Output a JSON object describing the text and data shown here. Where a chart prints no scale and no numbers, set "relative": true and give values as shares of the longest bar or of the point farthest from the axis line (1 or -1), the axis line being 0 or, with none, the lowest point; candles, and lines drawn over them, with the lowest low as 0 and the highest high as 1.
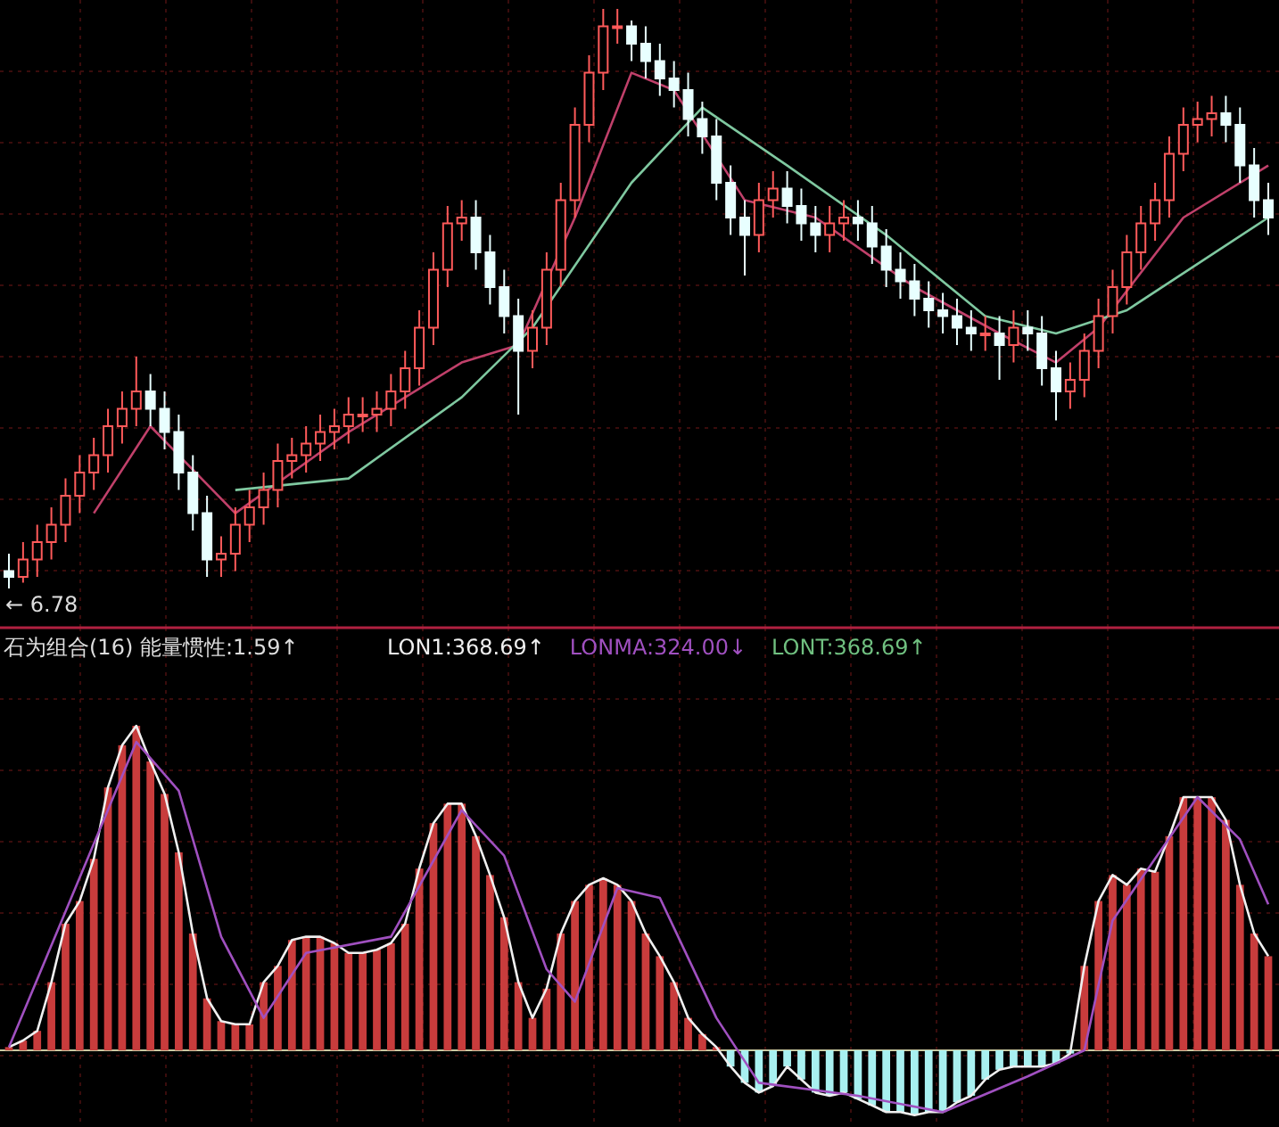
{
  "chart_data": [
    {
      "type": "candlestick",
      "relative": true,
      "grid": true,
      "annotations": [
        "← 6.78"
      ],
      "categories": [
        null,
        null,
        null,
        null,
        null,
        null,
        null,
        null,
        null,
        null,
        null,
        null,
        null,
        null,
        null,
        null,
        null,
        null,
        null,
        null,
        null,
        null,
        null,
        null,
        null,
        null,
        null,
        null,
        null,
        null,
        null,
        null,
        null,
        null,
        null,
        null,
        null,
        null,
        null,
        null,
        null,
        null,
        null,
        null,
        null,
        null,
        null,
        null,
        null,
        null,
        null,
        null,
        null,
        null,
        null,
        null,
        null,
        null,
        null,
        null,
        null,
        null,
        null,
        null,
        null,
        null,
        null,
        null,
        null,
        null,
        null,
        null,
        null,
        null,
        null,
        null,
        null,
        null,
        null,
        null,
        null,
        null,
        null,
        null,
        null,
        null,
        null,
        null,
        null,
        null
      ],
      "ohlc": [
        [
          0.03,
          0.06,
          0.0,
          0.02
        ],
        [
          0.02,
          0.08,
          0.01,
          0.05
        ],
        [
          0.05,
          0.11,
          0.02,
          0.08
        ],
        [
          0.08,
          0.14,
          0.05,
          0.11
        ],
        [
          0.11,
          0.19,
          0.08,
          0.16
        ],
        [
          0.16,
          0.23,
          0.13,
          0.2
        ],
        [
          0.2,
          0.26,
          0.17,
          0.23
        ],
        [
          0.23,
          0.31,
          0.2,
          0.28
        ],
        [
          0.28,
          0.34,
          0.25,
          0.31
        ],
        [
          0.31,
          0.4,
          0.28,
          0.34
        ],
        [
          0.34,
          0.37,
          0.28,
          0.31
        ],
        [
          0.31,
          0.34,
          0.24,
          0.27
        ],
        [
          0.27,
          0.3,
          0.17,
          0.2
        ],
        [
          0.2,
          0.23,
          0.1,
          0.13
        ],
        [
          0.13,
          0.16,
          0.02,
          0.05
        ],
        [
          0.05,
          0.09,
          0.02,
          0.06
        ],
        [
          0.06,
          0.14,
          0.03,
          0.11
        ],
        [
          0.11,
          0.17,
          0.08,
          0.14
        ],
        [
          0.14,
          0.2,
          0.11,
          0.17
        ],
        [
          0.17,
          0.25,
          0.14,
          0.22
        ],
        [
          0.22,
          0.26,
          0.19,
          0.23
        ],
        [
          0.23,
          0.28,
          0.2,
          0.25
        ],
        [
          0.25,
          0.3,
          0.22,
          0.27
        ],
        [
          0.27,
          0.31,
          0.24,
          0.28
        ],
        [
          0.28,
          0.33,
          0.25,
          0.3
        ],
        [
          0.3,
          0.33,
          0.27,
          0.3
        ],
        [
          0.3,
          0.34,
          0.27,
          0.31
        ],
        [
          0.31,
          0.37,
          0.28,
          0.34
        ],
        [
          0.34,
          0.41,
          0.31,
          0.38
        ],
        [
          0.38,
          0.48,
          0.35,
          0.45
        ],
        [
          0.45,
          0.58,
          0.42,
          0.55
        ],
        [
          0.55,
          0.66,
          0.52,
          0.63
        ],
        [
          0.63,
          0.67,
          0.6,
          0.64
        ],
        [
          0.64,
          0.67,
          0.55,
          0.58
        ],
        [
          0.58,
          0.61,
          0.49,
          0.52
        ],
        [
          0.52,
          0.55,
          0.44,
          0.47
        ],
        [
          0.47,
          0.5,
          0.3,
          0.41
        ],
        [
          0.41,
          0.48,
          0.38,
          0.45
        ],
        [
          0.45,
          0.58,
          0.42,
          0.55
        ],
        [
          0.55,
          0.7,
          0.52,
          0.67
        ],
        [
          0.67,
          0.83,
          0.64,
          0.8
        ],
        [
          0.8,
          0.92,
          0.77,
          0.89
        ],
        [
          0.89,
          1.0,
          0.86,
          0.97
        ],
        [
          0.97,
          1.0,
          0.94,
          0.97
        ],
        [
          0.97,
          0.98,
          0.91,
          0.94
        ],
        [
          0.94,
          0.97,
          0.88,
          0.91
        ],
        [
          0.91,
          0.94,
          0.85,
          0.88
        ],
        [
          0.88,
          0.91,
          0.83,
          0.86
        ],
        [
          0.86,
          0.89,
          0.78,
          0.81
        ],
        [
          0.81,
          0.84,
          0.75,
          0.78
        ],
        [
          0.78,
          0.81,
          0.67,
          0.7
        ],
        [
          0.7,
          0.73,
          0.61,
          0.64
        ],
        [
          0.64,
          0.67,
          0.54,
          0.61
        ],
        [
          0.61,
          0.7,
          0.58,
          0.67
        ],
        [
          0.67,
          0.72,
          0.64,
          0.69
        ],
        [
          0.69,
          0.72,
          0.63,
          0.66
        ],
        [
          0.66,
          0.69,
          0.6,
          0.63
        ],
        [
          0.63,
          0.66,
          0.58,
          0.61
        ],
        [
          0.61,
          0.66,
          0.58,
          0.63
        ],
        [
          0.63,
          0.67,
          0.6,
          0.64
        ],
        [
          0.64,
          0.67,
          0.6,
          0.63
        ],
        [
          0.63,
          0.66,
          0.56,
          0.59
        ],
        [
          0.59,
          0.62,
          0.52,
          0.55
        ],
        [
          0.55,
          0.58,
          0.5,
          0.53
        ],
        [
          0.53,
          0.56,
          0.47,
          0.5
        ],
        [
          0.5,
          0.53,
          0.45,
          0.48
        ],
        [
          0.48,
          0.51,
          0.44,
          0.47
        ],
        [
          0.47,
          0.5,
          0.42,
          0.45
        ],
        [
          0.45,
          0.48,
          0.41,
          0.44
        ],
        [
          0.44,
          0.47,
          0.41,
          0.44
        ],
        [
          0.44,
          0.47,
          0.36,
          0.42
        ],
        [
          0.42,
          0.48,
          0.39,
          0.45
        ],
        [
          0.45,
          0.48,
          0.41,
          0.44
        ],
        [
          0.44,
          0.47,
          0.35,
          0.38
        ],
        [
          0.38,
          0.41,
          0.29,
          0.34
        ],
        [
          0.34,
          0.39,
          0.31,
          0.36
        ],
        [
          0.36,
          0.44,
          0.33,
          0.41
        ],
        [
          0.41,
          0.5,
          0.38,
          0.47
        ],
        [
          0.47,
          0.55,
          0.44,
          0.52
        ],
        [
          0.52,
          0.61,
          0.49,
          0.58
        ],
        [
          0.58,
          0.66,
          0.55,
          0.63
        ],
        [
          0.63,
          0.7,
          0.6,
          0.67
        ],
        [
          0.67,
          0.78,
          0.64,
          0.75
        ],
        [
          0.75,
          0.83,
          0.72,
          0.8
        ],
        [
          0.8,
          0.84,
          0.77,
          0.81
        ],
        [
          0.81,
          0.85,
          0.78,
          0.82
        ],
        [
          0.82,
          0.85,
          0.77,
          0.8
        ],
        [
          0.8,
          0.83,
          0.7,
          0.73
        ],
        [
          0.73,
          0.76,
          0.64,
          0.67
        ],
        [
          0.67,
          0.7,
          0.61,
          0.64
        ]
      ],
      "series": [
        {
          "type": "line",
          "color": "#c0406a",
          "values": [
            null,
            null,
            null,
            null,
            null,
            null,
            0.13,
            null,
            null,
            null,
            0.28,
            null,
            null,
            null,
            null,
            null,
            0.13,
            null,
            null,
            null,
            null,
            null,
            null,
            null,
            0.27,
            null,
            null,
            null,
            null,
            null,
            null,
            null,
            0.39,
            null,
            null,
            null,
            0.42,
            null,
            null,
            null,
            0.64,
            null,
            null,
            null,
            0.89,
            null,
            null,
            0.86,
            null,
            null,
            null,
            null,
            0.67,
            null,
            null,
            null,
            null,
            0.64,
            null,
            null,
            null,
            null,
            null,
            null,
            0.52,
            null,
            null,
            null,
            null,
            null,
            0.44,
            null,
            null,
            null,
            0.39,
            null,
            null,
            0.45,
            null,
            null,
            null,
            null,
            null,
            0.64,
            null,
            null,
            null,
            null,
            null,
            0.73
          ]
        },
        {
          "type": "line",
          "color": "#7fc8a0",
          "values": [
            null,
            null,
            null,
            null,
            null,
            null,
            null,
            null,
            null,
            null,
            null,
            null,
            null,
            null,
            null,
            null,
            0.17,
            null,
            null,
            null,
            null,
            null,
            null,
            null,
            0.19,
            null,
            null,
            null,
            null,
            null,
            null,
            null,
            0.33,
            null,
            null,
            null,
            null,
            0.45,
            null,
            null,
            null,
            null,
            null,
            null,
            0.7,
            null,
            null,
            null,
            null,
            0.83,
            null,
            null,
            null,
            null,
            null,
            0.73,
            null,
            null,
            null,
            null,
            null,
            null,
            0.61,
            null,
            null,
            null,
            null,
            null,
            null,
            0.47,
            null,
            null,
            null,
            null,
            0.44,
            null,
            null,
            null,
            null,
            0.48,
            null,
            null,
            null,
            null,
            null,
            null,
            null,
            null,
            null,
            0.64
          ]
        }
      ]
    },
    {
      "type": "bar",
      "relative": true,
      "grid": true,
      "title": "石为组合(16) 能量惯性:1.59↑",
      "annotations": [
        "LONT:368.69↑"
      ],
      "categories": [
        null,
        null,
        null,
        null,
        null,
        null,
        null,
        null,
        null,
        null,
        null,
        null,
        null,
        null,
        null,
        null,
        null,
        null,
        null,
        null,
        null,
        null,
        null,
        null,
        null,
        null,
        null,
        null,
        null,
        null,
        null,
        null,
        null,
        null,
        null,
        null,
        null,
        null,
        null,
        null,
        null,
        null,
        null,
        null,
        null,
        null,
        null,
        null,
        null,
        null,
        null,
        null,
        null,
        null,
        null,
        null,
        null,
        null,
        null,
        null,
        null,
        null,
        null,
        null,
        null,
        null,
        null,
        null,
        null,
        null,
        null,
        null,
        null,
        null,
        null,
        null,
        null,
        null,
        null,
        null,
        null,
        null,
        null,
        null,
        null,
        null,
        null,
        null,
        null,
        null
      ],
      "series": [
        {
          "values": [
            0.01,
            0.03,
            0.06,
            0.21,
            0.39,
            0.46,
            0.59,
            0.81,
            0.94,
            1.0,
            0.89,
            0.79,
            0.61,
            0.36,
            0.16,
            0.09,
            0.08,
            0.08,
            0.21,
            0.26,
            0.34,
            0.35,
            0.35,
            0.33,
            0.3,
            0.3,
            0.31,
            0.33,
            0.39,
            0.56,
            0.7,
            0.76,
            0.76,
            0.66,
            0.54,
            0.41,
            0.21,
            0.1,
            0.19,
            0.36,
            0.46,
            0.51,
            0.53,
            0.51,
            0.46,
            0.36,
            0.29,
            0.21,
            0.1,
            0.05,
            0.01,
            -0.05,
            -0.1,
            -0.13,
            -0.11,
            -0.05,
            -0.09,
            -0.13,
            -0.14,
            -0.13,
            -0.15,
            -0.17,
            -0.19,
            -0.19,
            -0.2,
            -0.19,
            -0.19,
            -0.16,
            -0.14,
            -0.09,
            -0.06,
            -0.05,
            -0.05,
            -0.05,
            -0.04,
            -0.01,
            0.26,
            0.46,
            0.54,
            0.51,
            0.56,
            0.55,
            0.66,
            0.78,
            0.78,
            0.78,
            0.71,
            0.51,
            0.36,
            0.29
          ],
          "colors": [
            "#c83c3c",
            "#c83c3c",
            "#c83c3c",
            "#c83c3c",
            "#c83c3c",
            "#c83c3c",
            "#c83c3c",
            "#c83c3c",
            "#c83c3c",
            "#c83c3c",
            "#c83c3c",
            "#c83c3c",
            "#c83c3c",
            "#c83c3c",
            "#c83c3c",
            "#c83c3c",
            "#c83c3c",
            "#c83c3c",
            "#c83c3c",
            "#c83c3c",
            "#c83c3c",
            "#c83c3c",
            "#c83c3c",
            "#c83c3c",
            "#c83c3c",
            "#c83c3c",
            "#c83c3c",
            "#c83c3c",
            "#c83c3c",
            "#c83c3c",
            "#c83c3c",
            "#c83c3c",
            "#c83c3c",
            "#c83c3c",
            "#c83c3c",
            "#c83c3c",
            "#c83c3c",
            "#c83c3c",
            "#c83c3c",
            "#c83c3c",
            "#c83c3c",
            "#c83c3c",
            "#c83c3c",
            "#c83c3c",
            "#c83c3c",
            "#c83c3c",
            "#c83c3c",
            "#c83c3c",
            "#c83c3c",
            "#c83c3c",
            "#c83c3c",
            "#a8f0f0",
            "#a8f0f0",
            "#a8f0f0",
            "#a8f0f0",
            "#a8f0f0",
            "#a8f0f0",
            "#a8f0f0",
            "#a8f0f0",
            "#a8f0f0",
            "#a8f0f0",
            "#a8f0f0",
            "#a8f0f0",
            "#a8f0f0",
            "#a8f0f0",
            "#a8f0f0",
            "#a8f0f0",
            "#a8f0f0",
            "#a8f0f0",
            "#a8f0f0",
            "#a8f0f0",
            "#a8f0f0",
            "#a8f0f0",
            "#a8f0f0",
            "#a8f0f0",
            "#a8f0f0",
            "#c83c3c",
            "#c83c3c",
            "#c83c3c",
            "#c83c3c",
            "#c83c3c",
            "#c83c3c",
            "#c83c3c",
            "#c83c3c",
            "#c83c3c",
            "#c83c3c",
            "#c83c3c",
            "#c83c3c",
            "#c83c3c",
            "#c83c3c"
          ]
        },
        {
          "name": "LON1:368.69↑",
          "type": "line",
          "color": "#f0f0f0",
          "values": [
            0.01,
            0.03,
            0.06,
            0.21,
            0.39,
            0.46,
            0.59,
            0.81,
            0.94,
            1.0,
            0.89,
            0.79,
            0.61,
            0.36,
            0.16,
            0.09,
            0.08,
            0.08,
            0.21,
            0.26,
            0.34,
            0.35,
            0.35,
            0.33,
            0.3,
            0.3,
            0.31,
            0.33,
            0.39,
            0.56,
            0.7,
            0.76,
            0.76,
            0.66,
            0.54,
            0.41,
            0.21,
            0.1,
            0.19,
            0.36,
            0.46,
            0.51,
            0.53,
            0.51,
            0.46,
            0.36,
            0.29,
            0.21,
            0.1,
            0.05,
            0.01,
            -0.05,
            -0.1,
            -0.13,
            -0.11,
            -0.05,
            -0.09,
            -0.13,
            -0.14,
            -0.13,
            -0.15,
            -0.17,
            -0.19,
            -0.19,
            -0.2,
            -0.19,
            -0.19,
            -0.16,
            -0.14,
            -0.09,
            -0.06,
            -0.05,
            -0.05,
            -0.05,
            -0.04,
            -0.01,
            0.26,
            0.46,
            0.54,
            0.51,
            0.56,
            0.55,
            0.66,
            0.78,
            0.78,
            0.78,
            0.71,
            0.51,
            0.36,
            0.29
          ]
        },
        {
          "name": "LONMA:324.00↓",
          "type": "line",
          "color": "#a050c0",
          "values": [
            0.01,
            null,
            null,
            null,
            null,
            null,
            null,
            null,
            null,
            0.95,
            null,
            null,
            0.8,
            null,
            null,
            0.35,
            null,
            null,
            0.1,
            null,
            null,
            0.3,
            null,
            null,
            null,
            null,
            null,
            0.35,
            null,
            null,
            null,
            null,
            0.74,
            null,
            null,
            0.6,
            null,
            null,
            0.25,
            null,
            0.15,
            null,
            null,
            0.5,
            null,
            null,
            0.47,
            null,
            null,
            null,
            0.1,
            null,
            null,
            -0.1,
            null,
            null,
            null,
            null,
            null,
            null,
            -0.14,
            null,
            null,
            null,
            null,
            null,
            -0.19,
            null,
            null,
            null,
            null,
            null,
            -0.08,
            null,
            null,
            null,
            0.0,
            null,
            0.4,
            null,
            null,
            null,
            null,
            null,
            0.78,
            null,
            null,
            0.65,
            null,
            0.45
          ]
        }
      ]
    }
  ]
}
